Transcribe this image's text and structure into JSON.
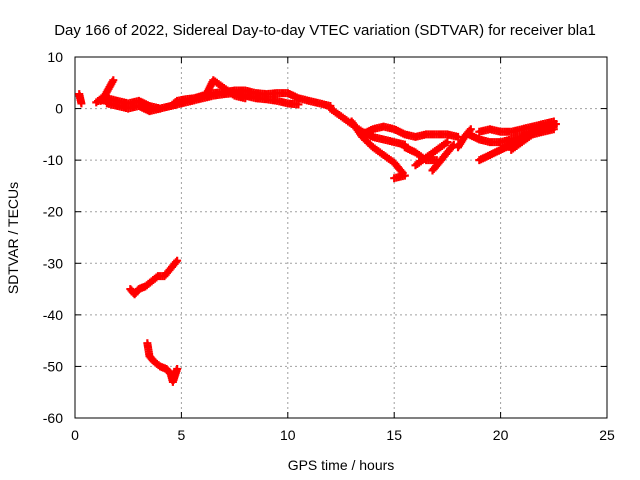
{
  "chart_data": {
    "type": "scatter",
    "title": "Day 166 of 2022, Sidereal Day-to-day VTEC variation (SDTVAR) for receiver bla1",
    "xlabel": "GPS time / hours",
    "ylabel": "SDTVAR / TECUs",
    "xlim": [
      0,
      25
    ],
    "ylim": [
      -60,
      10
    ],
    "xticks": [
      0,
      5,
      10,
      15,
      20,
      25
    ],
    "yticks": [
      10,
      0,
      -10,
      -20,
      -30,
      -40,
      -50,
      -60
    ],
    "grid": true,
    "marker": "plus",
    "color": "#ff0000",
    "series": [
      {
        "name": "SDTVAR",
        "segments": [
          [
            [
              0.2,
              2.8
            ],
            [
              0.3,
              1.0
            ]
          ],
          [
            [
              1.0,
              1.2
            ],
            [
              1.4,
              2.5
            ],
            [
              1.8,
              5.5
            ]
          ],
          [
            [
              1.2,
              1.5
            ],
            [
              1.5,
              2.0
            ],
            [
              2.0,
              1.5
            ],
            [
              2.5,
              1.0
            ],
            [
              3.0,
              1.5
            ],
            [
              3.5,
              0.5
            ],
            [
              4.0,
              0.0
            ],
            [
              4.5,
              0.5
            ],
            [
              5.0,
              1.0
            ]
          ],
          [
            [
              1.5,
              1.0
            ],
            [
              2.0,
              0.5
            ],
            [
              2.5,
              0.0
            ],
            [
              3.0,
              0.5
            ],
            [
              3.5,
              -0.5
            ],
            [
              4.0,
              0.0
            ]
          ],
          [
            [
              4.5,
              0.5
            ],
            [
              4.8,
              1.5
            ],
            [
              5.2,
              1.8
            ],
            [
              5.6,
              2.0
            ],
            [
              6.0,
              2.5
            ],
            [
              6.5,
              3.0
            ],
            [
              7.0,
              3.2
            ],
            [
              7.5,
              3.5
            ],
            [
              8.0,
              3.5
            ],
            [
              8.5,
              3.0
            ],
            [
              9.0,
              2.8
            ],
            [
              9.5,
              3.0
            ],
            [
              10.0,
              3.0
            ],
            [
              10.5,
              2.0
            ],
            [
              11.0,
              1.5
            ],
            [
              11.5,
              1.0
            ],
            [
              12.0,
              0.5
            ]
          ],
          [
            [
              5.0,
              1.0
            ],
            [
              5.5,
              1.5
            ],
            [
              6.0,
              2.0
            ],
            [
              6.5,
              2.5
            ],
            [
              7.0,
              2.8
            ],
            [
              7.5,
              3.0
            ],
            [
              8.0,
              2.5
            ],
            [
              8.5,
              2.0
            ],
            [
              9.0,
              1.8
            ],
            [
              9.5,
              1.5
            ],
            [
              10.0,
              1.0
            ],
            [
              10.5,
              0.8
            ]
          ],
          [
            [
              6.2,
              3.0
            ],
            [
              6.5,
              5.5
            ],
            [
              7.0,
              4.0
            ],
            [
              7.5,
              2.5
            ],
            [
              8.0,
              2.0
            ]
          ],
          [
            [
              12.0,
              0.0
            ],
            [
              12.5,
              -1.5
            ],
            [
              13.0,
              -3.0
            ],
            [
              13.5,
              -4.5
            ],
            [
              14.0,
              -5.5
            ],
            [
              14.5,
              -6.0
            ],
            [
              15.0,
              -6.5
            ],
            [
              15.5,
              -7.0
            ]
          ],
          [
            [
              13.0,
              -2.5
            ],
            [
              13.5,
              -5.5
            ],
            [
              14.0,
              -7.5
            ],
            [
              14.5,
              -9.0
            ],
            [
              15.0,
              -10.5
            ],
            [
              15.4,
              -12.5
            ]
          ],
          [
            [
              13.5,
              -5.0
            ],
            [
              14.0,
              -4.0
            ],
            [
              14.5,
              -3.5
            ],
            [
              15.0,
              -4.0
            ],
            [
              15.5,
              -5.0
            ],
            [
              16.0,
              -5.5
            ],
            [
              16.5,
              -5.0
            ],
            [
              17.0,
              -5.0
            ],
            [
              17.5,
              -5.0
            ],
            [
              18.0,
              -5.5
            ]
          ],
          [
            [
              15.0,
              -13.5
            ],
            [
              15.5,
              -13.0
            ]
          ],
          [
            [
              15.5,
              -7.5
            ],
            [
              16.0,
              -8.5
            ],
            [
              16.5,
              -10.0
            ],
            [
              17.0,
              -10.0
            ]
          ],
          [
            [
              16.0,
              -11.0
            ],
            [
              16.5,
              -9.5
            ],
            [
              17.0,
              -8.0
            ],
            [
              17.5,
              -6.5
            ]
          ],
          [
            [
              16.8,
              -12.0
            ],
            [
              17.2,
              -10.0
            ],
            [
              17.5,
              -8.5
            ],
            [
              17.8,
              -7.0
            ]
          ],
          [
            [
              18.0,
              -7.5
            ],
            [
              18.3,
              -5.5
            ],
            [
              18.6,
              -4.0
            ]
          ],
          [
            [
              18.5,
              -5.0
            ],
            [
              19.0,
              -6.0
            ],
            [
              19.5,
              -6.5
            ],
            [
              20.0,
              -6.5
            ],
            [
              20.5,
              -6.0
            ],
            [
              21.0,
              -5.5
            ],
            [
              21.5,
              -5.0
            ],
            [
              22.0,
              -4.5
            ],
            [
              22.5,
              -4.0
            ]
          ],
          [
            [
              19.0,
              -4.5
            ],
            [
              19.5,
              -4.0
            ],
            [
              20.0,
              -4.5
            ],
            [
              20.5,
              -4.5
            ],
            [
              21.0,
              -4.0
            ],
            [
              21.5,
              -3.5
            ],
            [
              22.0,
              -3.0
            ],
            [
              22.5,
              -2.5
            ]
          ],
          [
            [
              19.0,
              -10.0
            ],
            [
              19.5,
              -9.0
            ],
            [
              20.0,
              -8.0
            ],
            [
              20.5,
              -7.0
            ],
            [
              21.0,
              -5.5
            ],
            [
              21.5,
              -4.5
            ],
            [
              22.0,
              -4.0
            ],
            [
              22.5,
              -3.5
            ]
          ],
          [
            [
              20.5,
              -8.0
            ],
            [
              21.0,
              -6.5
            ],
            [
              21.5,
              -5.0
            ],
            [
              22.0,
              -3.5
            ],
            [
              22.6,
              -3.0
            ]
          ],
          [
            [
              2.6,
              -35.0
            ],
            [
              2.8,
              -36.0
            ],
            [
              3.0,
              -35.0
            ],
            [
              3.3,
              -34.5
            ],
            [
              3.6,
              -33.5
            ],
            [
              3.9,
              -32.5
            ],
            [
              4.2,
              -32.5
            ],
            [
              4.5,
              -31.0
            ],
            [
              4.8,
              -29.5
            ]
          ],
          [
            [
              3.4,
              -45.5
            ],
            [
              3.5,
              -48.0
            ],
            [
              3.7,
              -49.0
            ],
            [
              4.0,
              -50.0
            ],
            [
              4.3,
              -50.5
            ],
            [
              4.5,
              -51.5
            ],
            [
              4.6,
              -53.0
            ],
            [
              4.8,
              -50.5
            ]
          ]
        ]
      }
    ]
  }
}
